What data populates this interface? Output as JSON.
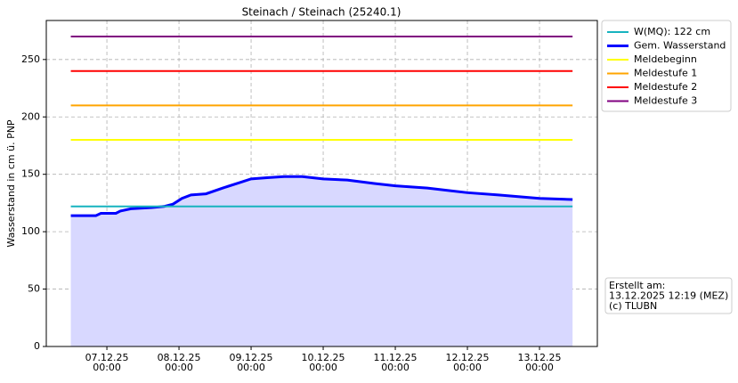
{
  "chart_data": {
    "type": "line",
    "title": "Steinach / Steinach (25240.1)",
    "y_label": "Wasserstand in cm ü. PNP",
    "ylim": [
      0,
      284
    ],
    "yticks": [
      0,
      50,
      100,
      150,
      200,
      250
    ],
    "xlim": [
      "06.12.25 03:50",
      "13.12.25 19:15"
    ],
    "xticks": [
      "07.12.25 00:00",
      "08.12.25 00:00",
      "09.12.25 00:00",
      "10.12.25 00:00",
      "11.12.25 00:00",
      "12.12.25 00:00",
      "13.12.25 00:00"
    ],
    "grid": true,
    "legend": "outside-upper-right",
    "series": [
      {
        "name": "W(MQ): 122 cm",
        "color": "#17b3bf",
        "x": [
          "06.12.25 12:00",
          "13.12.25 11:00"
        ],
        "values": [
          122,
          122
        ]
      },
      {
        "name": "Gem. Wasserstand",
        "color": "#0000ff",
        "fill": "#d8d8ff",
        "x": [
          "06.12.25 12:00",
          "06.12.25 20:20",
          "06.12.25 22:00",
          "07.12.25 03:00",
          "07.12.25 04:30",
          "07.12.25 08:00",
          "07.12.25 15:00",
          "07.12.25 19:00",
          "07.12.25 22:00",
          "08.12.25 01:00",
          "08.12.25 04:00",
          "08.12.25 09:00",
          "08.12.25 14:30",
          "08.12.25 20:30",
          "09.12.25 00:00",
          "09.12.25 05:20",
          "09.12.25 11:00",
          "09.12.25 17:00",
          "10.12.25 00:00",
          "10.12.25 08:00",
          "10.12.25 17:00",
          "11.12.25 00:00",
          "11.12.25 10:40",
          "12.12.25 00:00",
          "12.12.25 10:20",
          "13.12.25 00:00",
          "13.12.25 11:00"
        ],
        "values": [
          114,
          114,
          116,
          116,
          118,
          120,
          121,
          122,
          124,
          129,
          132,
          133,
          138,
          143,
          146,
          147,
          148,
          148,
          146,
          145,
          142,
          140,
          138,
          134,
          132,
          129,
          128
        ]
      },
      {
        "name": "Meldebeginn",
        "color": "#ffff00",
        "x": [
          "06.12.25 12:00",
          "13.12.25 11:00"
        ],
        "values": [
          180,
          180
        ]
      },
      {
        "name": "Meldestufe 1",
        "color": "#ffa500",
        "x": [
          "06.12.25 12:00",
          "13.12.25 11:00"
        ],
        "values": [
          210,
          210
        ]
      },
      {
        "name": "Meldestufe 2",
        "color": "#ff0000",
        "x": [
          "06.12.25 12:00",
          "13.12.25 11:00"
        ],
        "values": [
          240,
          240
        ]
      },
      {
        "name": "Meldestufe 3",
        "color": "#800080",
        "x": [
          "06.12.25 12:00",
          "13.12.25 11:00"
        ],
        "values": [
          270,
          270
        ]
      }
    ],
    "annotation": [
      "Erstellt am:",
      "13.12.2025 12:19 (MEZ)",
      "(c) TLUBN"
    ]
  }
}
